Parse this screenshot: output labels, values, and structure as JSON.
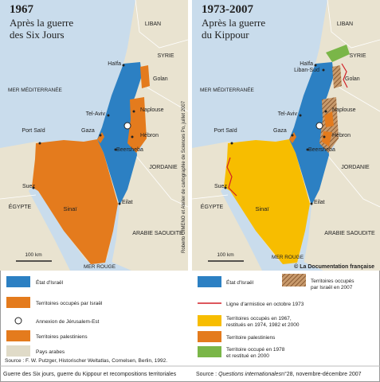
{
  "maps": [
    {
      "year": "1967",
      "subtitle": [
        "Après la guerre",
        "des Six Jours"
      ],
      "labels": [
        "LIBAN",
        "SYRIE",
        "Golan",
        "Haïfa",
        "MER MÉDITERRANÉE",
        "Naplouse",
        "Tel-Aviv",
        "Gaza",
        "Hébron",
        "Beersheba",
        "Port Saïd",
        "JORDANIE",
        "Suez",
        "Sinaï",
        "ÉGYPTE",
        "Eilat",
        "ARABIE SAOUDITE",
        "100 km",
        "MER ROUGE"
      ]
    },
    {
      "year": "1973-2007",
      "subtitle": [
        "Après la guerre",
        "du Kippour"
      ],
      "labels": [
        "LIBAN",
        "SYRIE",
        "Liban-Sud",
        "Golan",
        "Haïfa",
        "MER MÉDITERRANÉE",
        "Naplouse",
        "Tel-Aviv",
        "Gaza",
        "Hébron",
        "Port Saïd",
        "Beersheba",
        "JORDANIE",
        "Suez",
        "Sinaï",
        "ÉGYPTE",
        "Eilat",
        "ARABIE SAOUDITE",
        "100 km",
        "MER ROUGE"
      ]
    }
  ],
  "credit": "Roberto GIMENO et Atelier de cartographie de Sciences Po, juillet 2007",
  "copyright": "© La Documentation française",
  "legends": [
    {
      "items": [
        [
          "État d'Israël"
        ],
        [
          "Territoires occupés par Israël"
        ],
        [
          "Annexion de Jérusalem-Est"
        ],
        [
          "Territoires palestiniens"
        ],
        [
          "Pays arabes"
        ]
      ]
    },
    {
      "items": [
        [
          "État d'Israël"
        ],
        [
          "Territoires occupés",
          "par Israël en 2007"
        ],
        [
          "Ligne d'armistice en octobre 1973"
        ],
        [
          "Territoires occupés en 1967,",
          "restitués en 1974, 1982 et 2000"
        ],
        [
          "Territoire palestiniens"
        ],
        [
          "Territoire occupé en 1978",
          "et restitué en 2000"
        ]
      ]
    }
  ],
  "source": "Source : F. W. Putzger, Historischer Weltatlas, Cornelsen, Berlin, 1992.",
  "footer": {
    "caption": "Guerre des Six jours, guerre du Kippour et recompositions territoriales",
    "source_prefix": "Source : ",
    "source_title": "Questions internationales",
    "source_suffix": " n°28, novembre-décembre 2007"
  }
}
